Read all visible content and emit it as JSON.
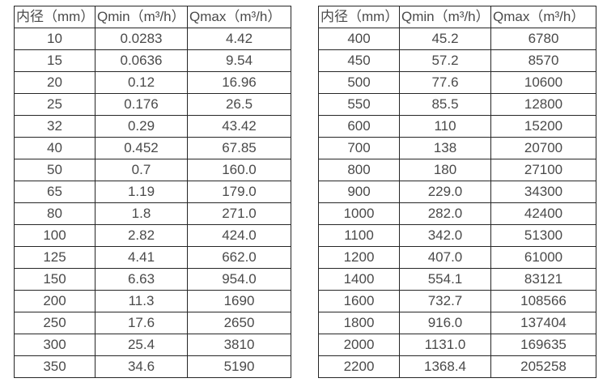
{
  "page": {
    "background_color": "#ffffff",
    "border_color": "#262626",
    "text_color": "#4a4a4a"
  },
  "tables": [
    {
      "id": "diameter-flow-table-left",
      "headers": [
        "内径（mm）",
        "Qmin（m³/h）",
        "Qmax（m³/h）"
      ],
      "rows": [
        [
          "10",
          "0.0283",
          "4.42"
        ],
        [
          "15",
          "0.0636",
          "9.54"
        ],
        [
          "20",
          "0.12",
          "16.96"
        ],
        [
          "25",
          "0.176",
          "26.5"
        ],
        [
          "32",
          "0.29",
          "43.42"
        ],
        [
          "40",
          "0.452",
          "67.85"
        ],
        [
          "50",
          "0.7",
          "160.0"
        ],
        [
          "65",
          "1.19",
          "179.0"
        ],
        [
          "80",
          "1.8",
          "271.0"
        ],
        [
          "100",
          "2.82",
          "424.0"
        ],
        [
          "125",
          "4.41",
          "662.0"
        ],
        [
          "150",
          "6.63",
          "954.0"
        ],
        [
          "200",
          "11.3",
          "1690"
        ],
        [
          "250",
          "17.6",
          "2650"
        ],
        [
          "300",
          "25.4",
          "3810"
        ],
        [
          "350",
          "34.6",
          "5190"
        ]
      ]
    },
    {
      "id": "diameter-flow-table-right",
      "headers": [
        "内径（mm）",
        "Qmin（m³/h）",
        "Qmax（m³/h）"
      ],
      "rows": [
        [
          "400",
          "45.2",
          "6780"
        ],
        [
          "450",
          "57.2",
          "8570"
        ],
        [
          "500",
          "77.6",
          "10600"
        ],
        [
          "550",
          "85.5",
          "12800"
        ],
        [
          "600",
          "110",
          "15200"
        ],
        [
          "700",
          "138",
          "20700"
        ],
        [
          "800",
          "180",
          "27100"
        ],
        [
          "900",
          "229.0",
          "34300"
        ],
        [
          "1000",
          "282.0",
          "42400"
        ],
        [
          "1100",
          "342.0",
          "51300"
        ],
        [
          "1200",
          "407.0",
          "61000"
        ],
        [
          "1400",
          "554.1",
          "83121"
        ],
        [
          "1600",
          "732.7",
          "108566"
        ],
        [
          "1800",
          "916.0",
          "137404"
        ],
        [
          "2000",
          "1131.0",
          "169635"
        ],
        [
          "2200",
          "1368.4",
          "205258"
        ]
      ]
    }
  ]
}
